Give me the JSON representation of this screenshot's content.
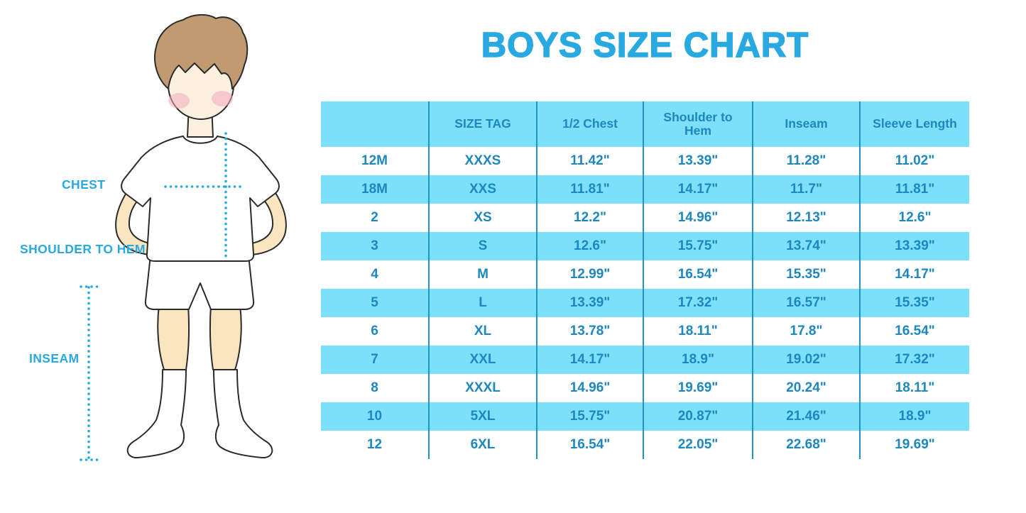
{
  "title": "BOYS SIZE CHART",
  "colors": {
    "accent_blue": "#29A9E1",
    "table_fill": "#7CE0FA",
    "table_text": "#1E87BE",
    "table_line": "#2292C6",
    "skin": "#F9E6C0",
    "face": "#FBF1DE",
    "hair": "#C09B72",
    "cheek": "#F2ACBE",
    "outline": "#2B2B2B"
  },
  "figure": {
    "description": "boy-measurement-illustration",
    "labels": {
      "chest": "CHEST",
      "shoulder_to_hem": "SHOULDER TO HEM",
      "inseam": "INSEAM"
    }
  },
  "chart_data": {
    "type": "table",
    "title": "BOYS SIZE CHART",
    "columns": [
      "",
      "SIZE TAG",
      "1/2 Chest",
      "Shoulder to Hem",
      "Inseam",
      "Sleeve Length"
    ],
    "rows": [
      [
        "12M",
        "XXXS",
        "11.42\"",
        "13.39\"",
        "11.28\"",
        "11.02\""
      ],
      [
        "18M",
        "XXS",
        "11.81\"",
        "14.17\"",
        "11.7\"",
        "11.81\""
      ],
      [
        "2",
        "XS",
        "12.2\"",
        "14.96\"",
        "12.13\"",
        "12.6\""
      ],
      [
        "3",
        "S",
        "12.6\"",
        "15.75\"",
        "13.74\"",
        "13.39\""
      ],
      [
        "4",
        "M",
        "12.99\"",
        "16.54\"",
        "15.35\"",
        "14.17\""
      ],
      [
        "5",
        "L",
        "13.39\"",
        "17.32\"",
        "16.57\"",
        "15.35\""
      ],
      [
        "6",
        "XL",
        "13.78\"",
        "18.11\"",
        "17.8\"",
        "16.54\""
      ],
      [
        "7",
        "XXL",
        "14.17\"",
        "18.9\"",
        "19.02\"",
        "17.32\""
      ],
      [
        "8",
        "XXXL",
        "14.96\"",
        "19.69\"",
        "20.24\"",
        "18.11\""
      ],
      [
        "10",
        "5XL",
        "15.75\"",
        "20.87\"",
        "21.46\"",
        "18.9\""
      ],
      [
        "12",
        "6XL",
        "16.54\"",
        "22.05\"",
        "22.68\"",
        "19.69\""
      ]
    ],
    "layout": {
      "header_background": "#7CE0FA",
      "row_striping": [
        "white",
        "#7CE0FA"
      ],
      "grid": "vertical-lines-only",
      "units": "inches"
    }
  }
}
